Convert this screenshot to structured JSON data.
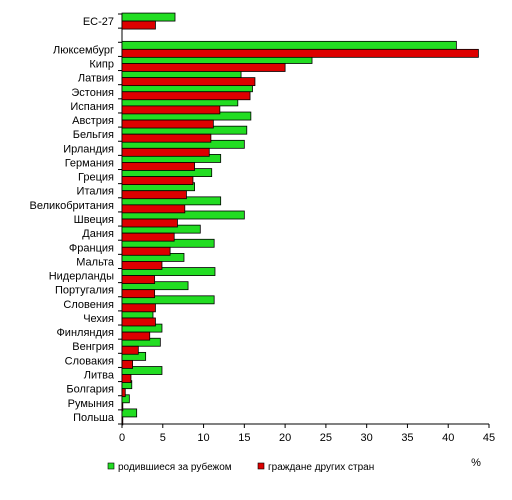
{
  "chart_data": {
    "type": "bar",
    "orientation": "horizontal",
    "categories": [
      "ЕС-27",
      "",
      "Люксембург",
      "Кипр",
      "Латвия",
      "Эстония",
      "Испания",
      "Австрия",
      "Бельгия",
      "Ирландия",
      "Германия",
      "Греция",
      "Италия",
      "Великобритания",
      "Швеция",
      "Дания",
      "Франция",
      "Мальта",
      "Нидерланды",
      "Португалия",
      "Словения",
      "Чехия",
      "Финляндия",
      "Венгрия",
      "Словакия",
      "Литва",
      "Болгария",
      "Румыния",
      "Польша"
    ],
    "series": [
      {
        "name": "родившиеся за рубежом",
        "color": "#22dd22",
        "values": [
          6.5,
          null,
          41,
          23.3,
          14.6,
          16.0,
          14.2,
          15.8,
          15.3,
          15.0,
          12.1,
          11.0,
          8.9,
          12.1,
          15.0,
          9.6,
          11.3,
          7.6,
          11.4,
          8.1,
          11.3,
          3.8,
          4.9,
          4.7,
          2.9,
          4.9,
          1.2,
          0.9,
          1.8
        ]
      },
      {
        "name": "граждане других стран",
        "color": "#dd0000",
        "values": [
          4.1,
          null,
          43.7,
          20.0,
          16.3,
          15.7,
          12.0,
          11.2,
          10.9,
          10.7,
          8.9,
          8.7,
          7.9,
          7.7,
          6.8,
          6.4,
          5.9,
          4.9,
          4.0,
          4.0,
          4.1,
          4.1,
          3.4,
          2.0,
          1.3,
          1.1,
          0.4,
          0.1,
          0.1
        ]
      }
    ],
    "xlim": [
      0,
      45
    ],
    "x_ticks": [
      "0",
      "5",
      "10",
      "15",
      "20",
      "25",
      "30",
      "35",
      "40",
      "45"
    ],
    "unit_label": "%",
    "legend_position": "bottom"
  }
}
